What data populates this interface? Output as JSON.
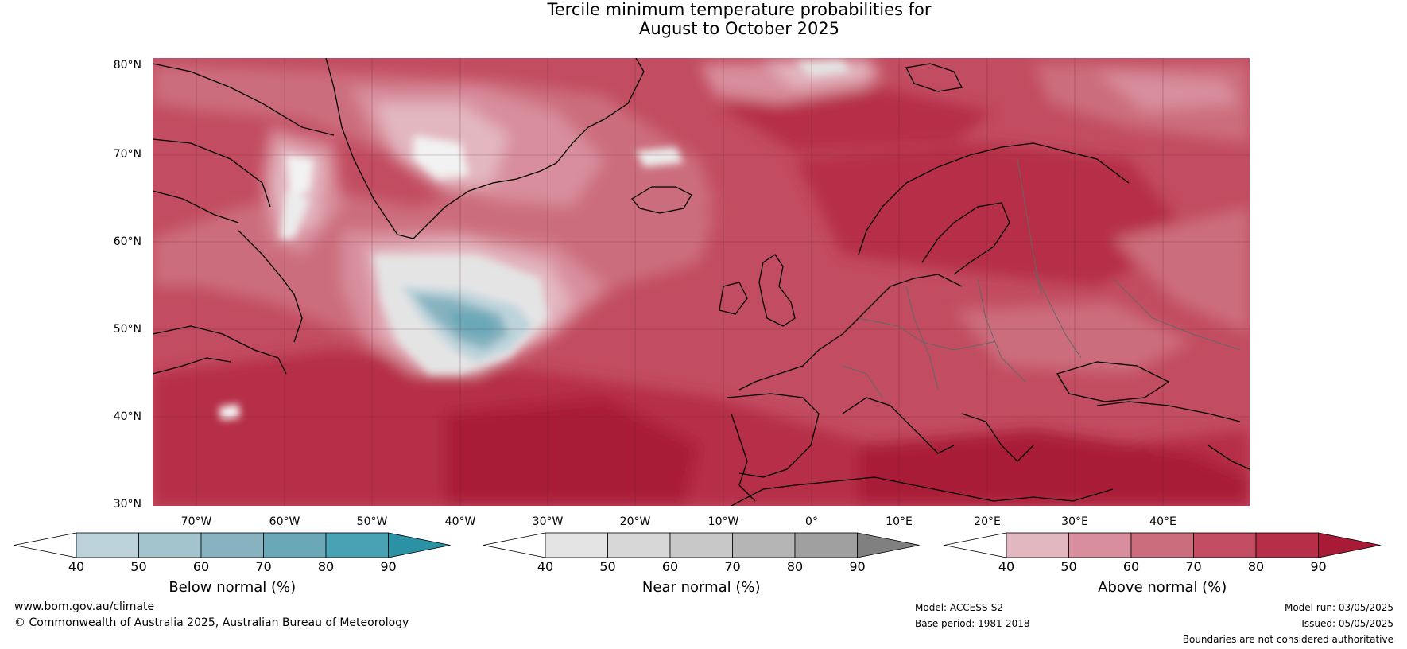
{
  "title": {
    "line1": "Tercile minimum temperature probabilities for",
    "line2": "August to October 2025"
  },
  "axes": {
    "lat_labels": [
      "80°N",
      "70°N",
      "60°N",
      "50°N",
      "40°N",
      "30°N"
    ],
    "lon_labels": [
      "70°W",
      "60°W",
      "50°W",
      "40°W",
      "30°W",
      "20°W",
      "10°W",
      "0°",
      "10°E",
      "20°E",
      "30°E",
      "40°E"
    ]
  },
  "colorbars": [
    {
      "label": "Below normal (%)",
      "ticks": [
        "40",
        "50",
        "60",
        "70",
        "80",
        "90"
      ],
      "colors": [
        "#ffffff",
        "#bcd3db",
        "#a3c4cc",
        "#87b3c0",
        "#6aa8b8",
        "#48a2b3",
        "#2b91a5"
      ]
    },
    {
      "label": "Near normal (%)",
      "ticks": [
        "40",
        "50",
        "60",
        "70",
        "80",
        "90"
      ],
      "colors": [
        "#ffffff",
        "#e4e4e4",
        "#d7d7d7",
        "#c8c8c8",
        "#b5b5b5",
        "#a0a0a0",
        "#808080"
      ]
    },
    {
      "label": "Above normal (%)",
      "ticks": [
        "40",
        "50",
        "60",
        "70",
        "80",
        "90"
      ],
      "colors": [
        "#ffffff",
        "#e3b7c0",
        "#d88e9c",
        "#cc6d7d",
        "#c24c61",
        "#b62e47",
        "#a91a37"
      ]
    }
  ],
  "footer": {
    "website": "www.bom.gov.au/climate",
    "copyright": "© Commonwealth of Australia 2025, Australian Bureau of Meteorology",
    "model": "Model: ACCESS-S2",
    "base_period": "Base period: 1981-2018",
    "model_run": "Model run: 03/05/2025",
    "issued": "Issued: 05/05/2025",
    "boundaries": "Boundaries are not considered authoritative"
  }
}
